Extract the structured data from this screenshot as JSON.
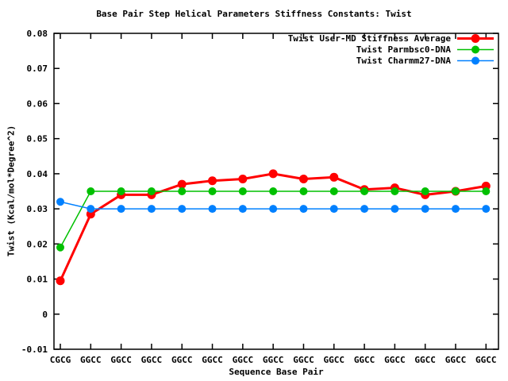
{
  "chart_data": {
    "type": "line",
    "title": "Base Pair Step Helical Parameters Stiffness Constants: Twist",
    "xlabel": "Sequence Base Pair",
    "ylabel": "Twist (Kcal/mol*Degree^2)",
    "categories": [
      "CGCG",
      "GGCC",
      "GGCC",
      "GGCC",
      "GGCC",
      "GGCC",
      "GGCC",
      "GGCC",
      "GGCC",
      "GGCC",
      "GGCC",
      "GGCC",
      "GGCC",
      "GGCC",
      "GGCC"
    ],
    "series": [
      {
        "name": "Twist User-MD Stiffness Average",
        "color": "#ff0000",
        "values": [
          0.0095,
          0.0285,
          0.034,
          0.034,
          0.037,
          0.038,
          0.0385,
          0.04,
          0.0385,
          0.039,
          0.0355,
          0.036,
          0.034,
          0.035,
          0.0365
        ]
      },
      {
        "name": "Twist Parmbsc0-DNA",
        "color": "#00c000",
        "values": [
          0.019,
          0.035,
          0.035,
          0.035,
          0.035,
          0.035,
          0.035,
          0.035,
          0.035,
          0.035,
          0.035,
          0.035,
          0.035,
          0.035,
          0.035
        ]
      },
      {
        "name": "Twist Charmm27-DNA",
        "color": "#0080ff",
        "values": [
          0.032,
          0.03,
          0.03,
          0.03,
          0.03,
          0.03,
          0.03,
          0.03,
          0.03,
          0.03,
          0.03,
          0.03,
          0.03,
          0.03,
          0.03
        ]
      }
    ],
    "ylim": [
      -0.01,
      0.08
    ],
    "ytick_step": 0.01,
    "ytick_labels": [
      "-0.01",
      "0",
      "0.01",
      "0.02",
      "0.03",
      "0.04",
      "0.05",
      "0.06",
      "0.07",
      "0.08"
    ],
    "legend_position": "top-right-inside",
    "grid": false,
    "background_color": "#ffffff",
    "axis_color": "#000000"
  }
}
